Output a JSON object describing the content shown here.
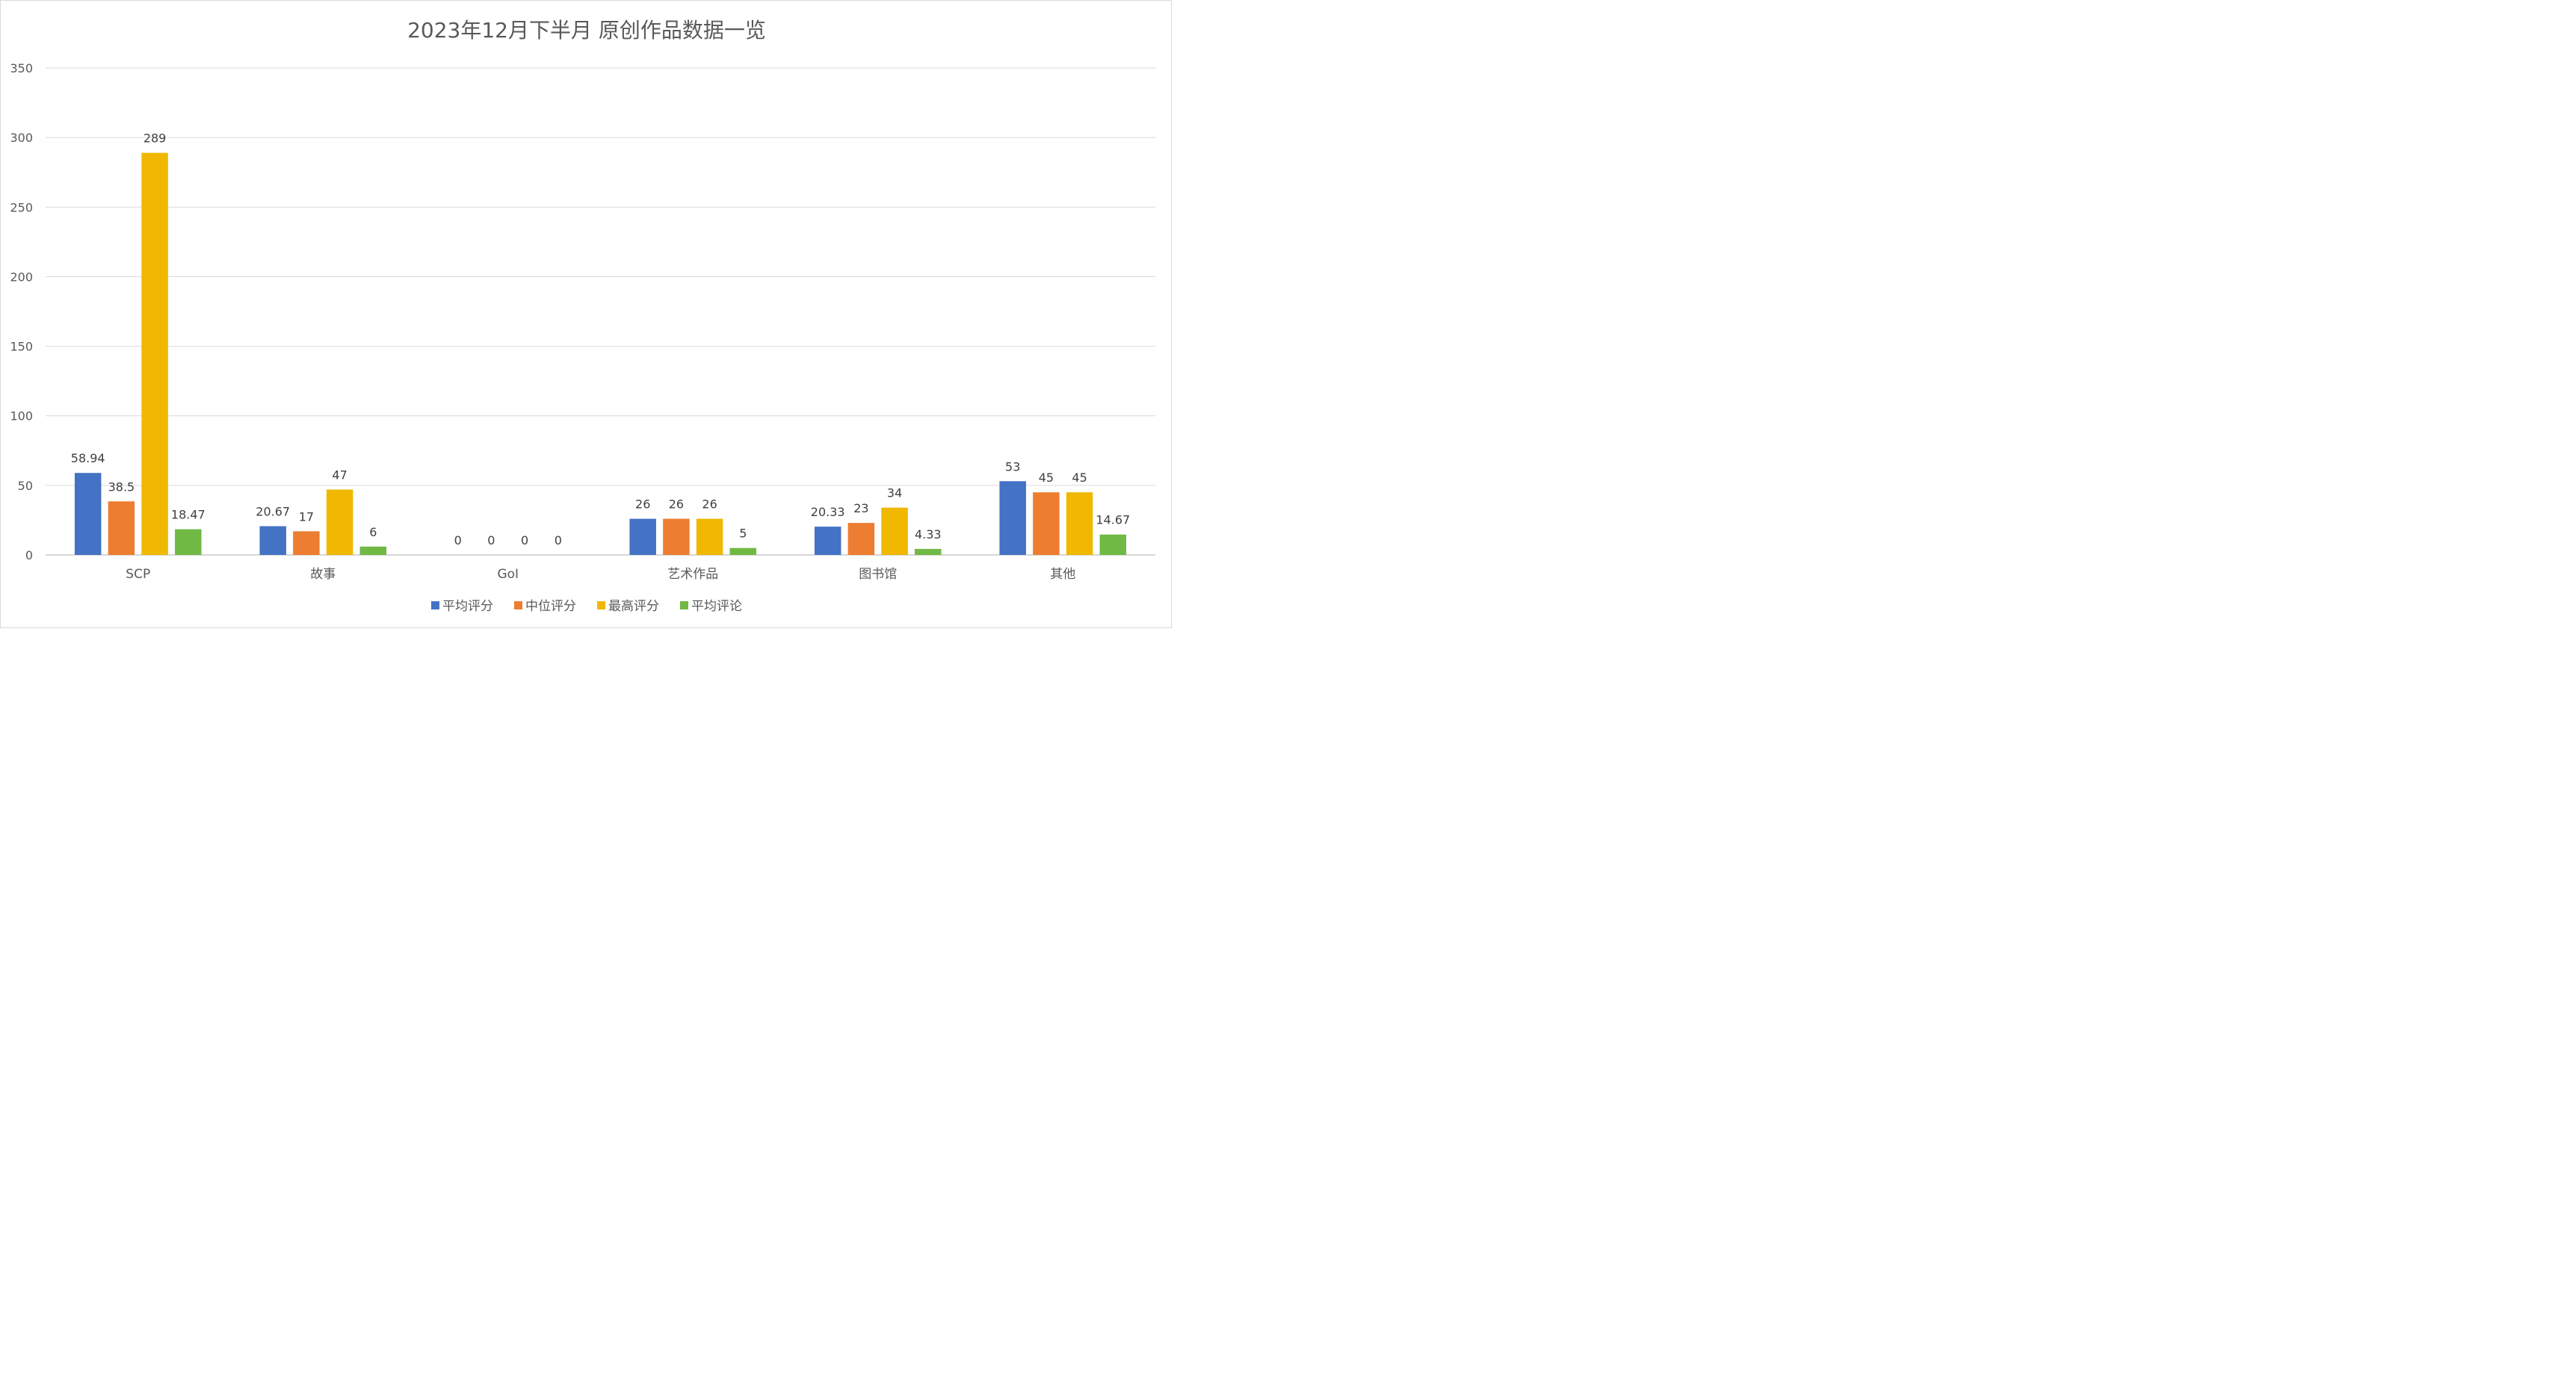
{
  "chart_data": {
    "type": "bar",
    "title": "2023年12月下半月 原创作品数据一览",
    "categories": [
      "SCP",
      "故事",
      "GoI",
      "艺术作品",
      "图书馆",
      "其他"
    ],
    "series": [
      {
        "name": "平均评分",
        "color": "#4472c4",
        "values": [
          58.94,
          20.67,
          0,
          26,
          20.33,
          53
        ],
        "labels": [
          "58.94",
          "20.67",
          "0",
          "26",
          "20.33",
          "53"
        ]
      },
      {
        "name": "中位评分",
        "color": "#ed7d31",
        "values": [
          38.5,
          17,
          0,
          26,
          23,
          45
        ],
        "labels": [
          "38.5",
          "17",
          "0",
          "26",
          "23",
          "45"
        ]
      },
      {
        "name": "最高评分",
        "color": "#f0b800",
        "values": [
          289,
          47,
          0,
          26,
          34,
          45
        ],
        "labels": [
          "289",
          "47",
          "0",
          "26",
          "34",
          "45"
        ]
      },
      {
        "name": "平均评论",
        "color": "#70b944",
        "values": [
          18.47,
          6,
          0,
          5,
          4.33,
          14.67
        ],
        "labels": [
          "18.47",
          "6",
          "0",
          "5",
          "4.33",
          "14.67"
        ]
      }
    ],
    "ylim": [
      0,
      350
    ],
    "yticks": [
      0,
      50,
      100,
      150,
      200,
      250,
      300,
      350
    ],
    "grid": true,
    "legend_position": "bottom"
  }
}
